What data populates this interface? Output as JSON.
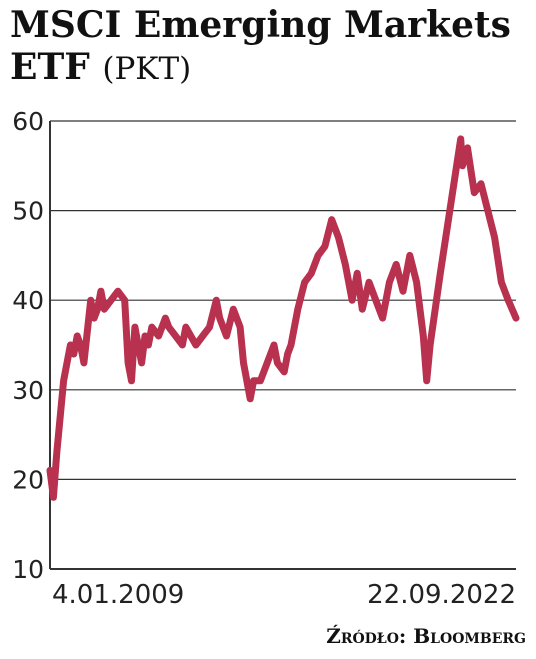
{
  "chart_data": {
    "type": "line",
    "title": "MSCI Emerging Markets ETF",
    "unit": "(PKT)",
    "source": "Źródło: Bloomberg",
    "ylim": [
      10,
      60
    ],
    "yticks": [
      10,
      20,
      30,
      40,
      50,
      60
    ],
    "x_labels": {
      "start": "4.01.2009",
      "end": "22.09.2022"
    },
    "grid": true,
    "line_color": "#b8314f",
    "series": [
      {
        "x": [
          2009.0,
          2009.1,
          2009.2,
          2009.3,
          2009.4,
          2009.5,
          2009.6,
          2009.7,
          2009.8,
          2009.9,
          2010.0,
          2010.2,
          2010.3,
          2010.4,
          2010.5,
          2010.6,
          2010.8,
          2011.0,
          2011.2,
          2011.3,
          2011.4,
          2011.5,
          2011.6,
          2011.7,
          2011.8,
          2011.9,
          2012.0,
          2012.2,
          2012.4,
          2012.5,
          2012.7,
          2012.9,
          2013.0,
          2013.3,
          2013.5,
          2013.7,
          2013.9,
          2014.0,
          2014.2,
          2014.4,
          2014.6,
          2014.7,
          2014.9,
          2015.0,
          2015.2,
          2015.4,
          2015.6,
          2015.7,
          2015.9,
          2016.0,
          2016.1,
          2016.3,
          2016.5,
          2016.7,
          2016.9,
          2017.1,
          2017.3,
          2017.5,
          2017.7,
          2017.9,
          2018.05,
          2018.2,
          2018.4,
          2018.6,
          2018.8,
          2019.0,
          2019.2,
          2019.4,
          2019.6,
          2019.8,
          2020.0,
          2020.1,
          2020.2,
          2020.35,
          2020.5,
          2020.7,
          2020.9,
          2021.1,
          2021.15,
          2021.3,
          2021.5,
          2021.7,
          2021.9,
          2022.1,
          2022.3,
          2022.5,
          2022.73
        ],
        "values": [
          21,
          18,
          23,
          27,
          31,
          33,
          35,
          34,
          36,
          35,
          33,
          40,
          38,
          39,
          41,
          39,
          40,
          41,
          40,
          33,
          31,
          37,
          35,
          33,
          36,
          35,
          37,
          36,
          38,
          37,
          36,
          35,
          37,
          35,
          36,
          37,
          40,
          38,
          36,
          39,
          37,
          33,
          29,
          31,
          31,
          33,
          35,
          33,
          32,
          34,
          35,
          39,
          42,
          43,
          45,
          46,
          49,
          47,
          44,
          40,
          43,
          39,
          42,
          40,
          38,
          42,
          44,
          41,
          45,
          42,
          36,
          31,
          35,
          39,
          43,
          48,
          53,
          58,
          55,
          57,
          52,
          53,
          50,
          47,
          42,
          40,
          38
        ]
      }
    ]
  }
}
